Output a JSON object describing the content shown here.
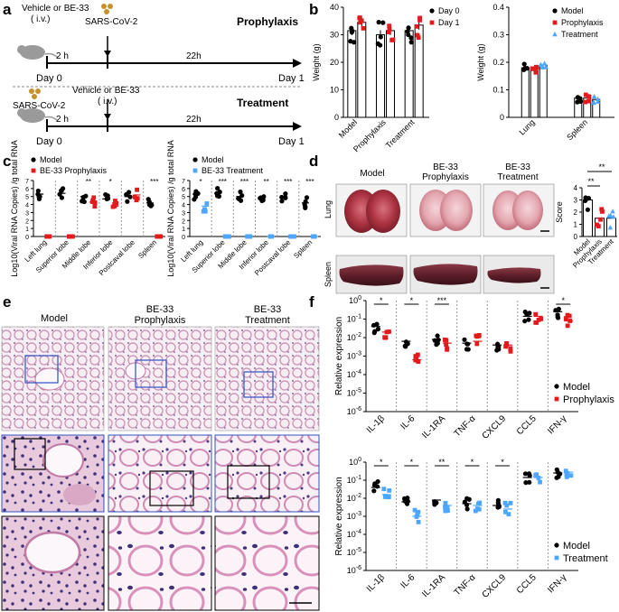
{
  "panel_letters": [
    "a",
    "b",
    "c",
    "d",
    "e",
    "f"
  ],
  "panel_a": {
    "prophylaxis": {
      "title": "Prophylaxis",
      "top_label": "Vehicle or  BE-33",
      "top_sub": "( i.v.)",
      "virus": "SARS-CoV-2",
      "interval1": "2 h",
      "interval2": "22h",
      "day0": "Day 0",
      "day1": "Day 1"
    },
    "treatment": {
      "title": "Treatment",
      "virus": "SARS-CoV-2",
      "top_label": "Vehicle or  BE-33",
      "top_sub": "( i.v.)",
      "interval1": "2 h",
      "interval2": "22h",
      "day0": "Day 0",
      "day1": "Day 1"
    }
  },
  "panel_d": {
    "col_labels": [
      "Model",
      "BE-33\nProphylaxis",
      "BE-33\nTreatment"
    ],
    "row_labels": [
      "Lung",
      "Spleen"
    ],
    "sig": [
      "**",
      "**"
    ]
  },
  "panel_e": {
    "col_labels": [
      "Model",
      "BE-33\nProphylaxis",
      "BE-33\nTreatment"
    ]
  },
  "colors": {
    "model": "#000000",
    "prophylaxis": "#e31a1c",
    "treatment": "#4da6ff"
  },
  "chart_data": [
    {
      "id": "b1",
      "type": "bar",
      "ylabel": "Weight (g)",
      "ylim": [
        0,
        40
      ],
      "yticks": [
        0,
        10,
        20,
        30,
        40
      ],
      "categories": [
        "Model",
        "Prophylaxis",
        "Treatment"
      ],
      "series": [
        {
          "name": "Day 0",
          "values": [
            31.5,
            30,
            31.5
          ]
        },
        {
          "name": "Day 1",
          "values": [
            34.5,
            31.5,
            33.5
          ]
        }
      ],
      "legend": "top-right"
    },
    {
      "id": "b2",
      "type": "bar",
      "ylabel": "Weight (g)",
      "ylim": [
        0,
        0.4
      ],
      "yticks": [
        0,
        0.1,
        0.2,
        0.3,
        0.4
      ],
      "categories": [
        "Lung",
        "Spleen"
      ],
      "series": [
        {
          "name": "Model",
          "values": [
            0.18,
            0.07
          ]
        },
        {
          "name": "Prophylaxis",
          "values": [
            0.17,
            0.07
          ]
        },
        {
          "name": "Treatment",
          "values": [
            0.19,
            0.065
          ]
        }
      ],
      "legend": "top-right"
    },
    {
      "id": "c1",
      "type": "scatter",
      "ylabel": "Log10(Viral RNA Copies) /g total RNA",
      "ylim": [
        0,
        7
      ],
      "yticks": [
        0,
        1,
        2,
        3,
        4,
        5,
        6,
        7
      ],
      "categories": [
        "Left lung",
        "Superior lobe",
        "Middle lobe",
        "Inferior lobe",
        "Postcaval lobe",
        "Spleen"
      ],
      "series": [
        {
          "name": "Model",
          "means": [
            5.3,
            5.4,
            5.0,
            4.7,
            5.0,
            4.2
          ]
        },
        {
          "name": "BE-33 Prophylaxis",
          "means": [
            0,
            0,
            4.3,
            3.8,
            5.2,
            0
          ]
        }
      ],
      "significance": [
        "",
        "",
        "**",
        "*",
        "",
        "***"
      ],
      "legend": "top"
    },
    {
      "id": "c2",
      "type": "scatter",
      "ylabel": "Log10(Viral RNA Copies) /g total RNA",
      "ylim": [
        0,
        7
      ],
      "yticks": [
        0,
        1,
        2,
        3,
        4,
        5,
        6,
        7
      ],
      "categories": [
        "Left lung",
        "Superior lobe",
        "Middle lobe",
        "Inferior lobe",
        "Postcaval lobe",
        "Spleen"
      ],
      "series": [
        {
          "name": "Model",
          "means": [
            5.3,
            5.4,
            5.0,
            4.7,
            5.0,
            4.2
          ]
        },
        {
          "name": "BE-33 Treatment",
          "means": [
            3.8,
            0,
            0,
            0,
            0,
            0
          ]
        }
      ],
      "significance": [
        "*",
        "***",
        "***",
        "**",
        "***",
        "***"
      ],
      "legend": "top"
    },
    {
      "id": "d",
      "type": "bar",
      "ylabel": "Score",
      "ylim": [
        0,
        4
      ],
      "yticks": [
        0,
        1,
        2,
        3,
        4
      ],
      "categories": [
        "Model",
        "Prophylaxis",
        "Treatment"
      ],
      "values": [
        3.0,
        1.5,
        1.5
      ]
    },
    {
      "id": "f1",
      "type": "scatter",
      "ylabel": "Relative expression",
      "yscale": "log",
      "yticks": [
        "10^0",
        "10^-1",
        "10^-2",
        "10^-3",
        "10^-4",
        "10^-5",
        "10^-6"
      ],
      "categories": [
        "IL-1β",
        "IL-6",
        "IL-1RA",
        "TNF-α",
        "CXCL9",
        "CCL5",
        "IFN-γ"
      ],
      "series": [
        {
          "name": "Model",
          "log10_means": [
            -1.4,
            -2.2,
            -2.1,
            -2.3,
            -2.4,
            -0.85,
            -0.6
          ]
        },
        {
          "name": "Prophylaxis",
          "log10_means": [
            -1.7,
            -3.2,
            -2.3,
            -2.2,
            -2.4,
            -0.85,
            -1.1
          ]
        }
      ],
      "significance": [
        "*",
        "*",
        "***",
        "",
        "",
        "",
        "*"
      ],
      "legend": "bottom-right"
    },
    {
      "id": "f2",
      "type": "scatter",
      "ylabel": "Relative expression",
      "yscale": "log",
      "yticks": [
        "10^0",
        "10^-1",
        "10^-2",
        "10^-3",
        "10^-4",
        "10^-5",
        "10^-6"
      ],
      "categories": [
        "IL-1β",
        "IL-6",
        "IL-1RA",
        "TNF-α",
        "CXCL9",
        "CCL5",
        "IFN-γ"
      ],
      "series": [
        {
          "name": "Model",
          "log10_means": [
            -1.4,
            -2.2,
            -2.1,
            -2.3,
            -2.4,
            -0.85,
            -0.6
          ]
        },
        {
          "name": "Treatment",
          "log10_means": [
            -1.8,
            -3.0,
            -2.4,
            -2.4,
            -2.6,
            -0.85,
            -0.55
          ]
        }
      ],
      "significance": [
        "*",
        "*",
        "**",
        "*",
        "*",
        "",
        ""
      ],
      "legend": "bottom-right"
    }
  ]
}
